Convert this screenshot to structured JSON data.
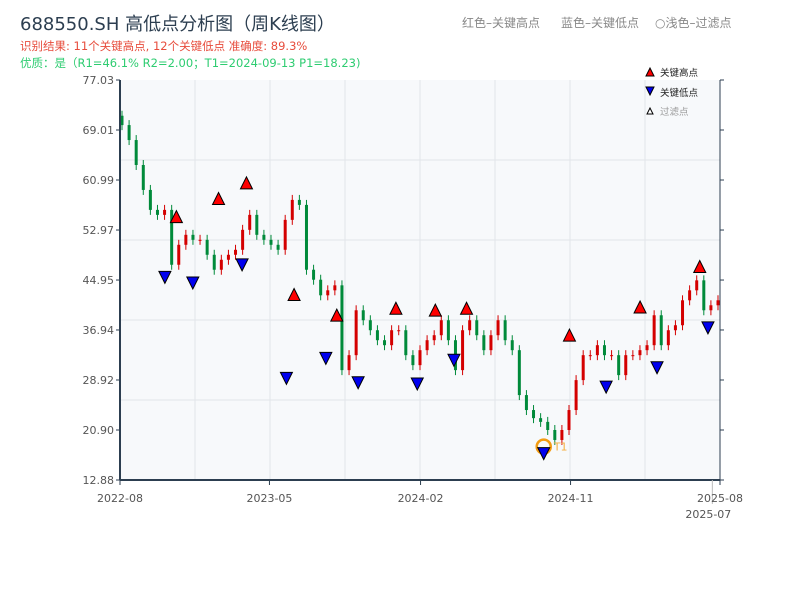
{
  "header": {
    "title": "688550.SH 高低点分析图（周K线图）",
    "result_line": "识别结果: 11个关键高点, 12个关键低点  准确度: 89.3%",
    "quality_line": "优质：是（R1=46.1%  R2=2.00；T1=2024-09-13 P1=18.23)",
    "legend_red": "红色–关键高点",
    "legend_blue": "蓝色–关键低点",
    "legend_light": "○浅色–过滤点"
  },
  "chart_data": {
    "type": "candlestick",
    "xlim": [
      "2022-08-01",
      "2025-08-01"
    ],
    "ylim": [
      12.88,
      77.03
    ],
    "yticks": [
      "12.88",
      "20.90",
      "28.92",
      "36.94",
      "44.95",
      "52.97",
      "60.99",
      "69.01",
      "77.03"
    ],
    "xticks": [
      {
        "label": "2022-08",
        "date": "2022-08-01"
      },
      {
        "label": "2023-05",
        "date": "2023-05-01"
      },
      {
        "label": "2024-02",
        "date": "2024-02-01"
      },
      {
        "label": "2024-11",
        "date": "2024-11-01"
      },
      {
        "label": "2025-07",
        "date": "2025-07-18"
      },
      {
        "label": "2025-08",
        "date": "2025-08-01"
      }
    ],
    "grid": true,
    "colors": {
      "up": "#d40000",
      "down": "#008a3a",
      "high_marker": "#ff0000",
      "low_marker": "#0000ee",
      "t1_ring": "#f39c12",
      "axis": "#2c3e50",
      "plot_bg": "#f7f9fb"
    },
    "closes": [
      69.8,
      67.4,
      63.4,
      59.4,
      56.2,
      55.4,
      56.2,
      47.4,
      50.6,
      52.2,
      51.4,
      51.4,
      49.0,
      46.6,
      48.2,
      49.0,
      49.8,
      53.0,
      55.4,
      52.2,
      51.4,
      50.6,
      49.8,
      54.6,
      57.8,
      57.0,
      46.6,
      45.0,
      42.5,
      43.3,
      44.1,
      30.5,
      32.9,
      40.1,
      38.5,
      36.9,
      35.3,
      34.5,
      36.9,
      36.9,
      32.9,
      31.3,
      33.7,
      35.3,
      36.1,
      38.5,
      35.3,
      30.5,
      36.9,
      38.5,
      36.1,
      33.7,
      36.1,
      38.5,
      35.3,
      33.7,
      26.5,
      24.1,
      22.8,
      22.2,
      20.9,
      19.3,
      20.9,
      24.1,
      28.9,
      32.9,
      32.9,
      34.5,
      32.9,
      32.9,
      29.7,
      32.9,
      32.9,
      33.7,
      34.5,
      39.3,
      34.5,
      36.9,
      37.7,
      41.7,
      43.3,
      44.9,
      40.1,
      40.9,
      41.7
    ],
    "key_highs": [
      {
        "date": "2022-11-12",
        "price": 54.0
      },
      {
        "date": "2023-01-28",
        "price": 56.9
      },
      {
        "date": "2023-03-20",
        "price": 59.4
      },
      {
        "date": "2023-06-15",
        "price": 41.5
      },
      {
        "date": "2023-09-01",
        "price": 38.2
      },
      {
        "date": "2023-12-18",
        "price": 39.3
      },
      {
        "date": "2024-02-28",
        "price": 39.0
      },
      {
        "date": "2024-04-25",
        "price": 39.3
      },
      {
        "date": "2024-10-30",
        "price": 35.0
      },
      {
        "date": "2025-03-08",
        "price": 39.5
      },
      {
        "date": "2025-06-25",
        "price": 46.0
      }
    ],
    "key_lows": [
      {
        "date": "2022-10-22",
        "price": 46.5
      },
      {
        "date": "2022-12-12",
        "price": 45.6
      },
      {
        "date": "2023-03-12",
        "price": 48.5
      },
      {
        "date": "2023-06-01",
        "price": 30.3
      },
      {
        "date": "2023-08-12",
        "price": 33.5
      },
      {
        "date": "2023-10-10",
        "price": 29.6
      },
      {
        "date": "2024-01-26",
        "price": 29.4
      },
      {
        "date": "2024-04-02",
        "price": 33.2
      },
      {
        "date": "2024-09-13",
        "price": 18.23
      },
      {
        "date": "2025-01-05",
        "price": 28.9
      },
      {
        "date": "2025-04-08",
        "price": 32.0
      },
      {
        "date": "2025-07-10",
        "price": 38.4
      }
    ],
    "t1": {
      "label": "T1",
      "date": "2024-09-13",
      "price": 18.23
    },
    "legend": {
      "position": "top-right",
      "items": [
        "关键高点",
        "关键低点",
        "过滤点"
      ]
    }
  }
}
